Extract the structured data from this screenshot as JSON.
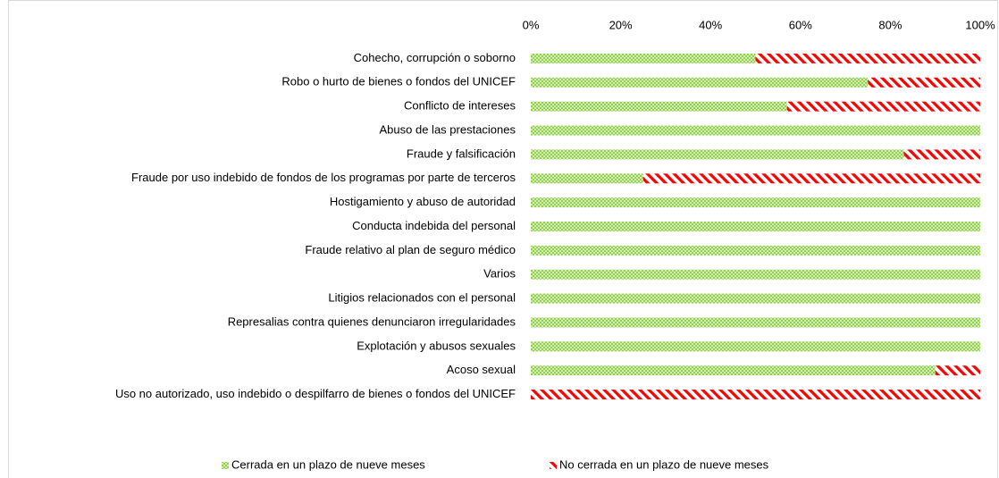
{
  "chart_data": {
    "type": "stacked_bar_horizontal",
    "categories": [
      "Cohecho, corrupción o soborno",
      "Robo o hurto de bienes o fondos del UNICEF",
      "Conflicto de intereses",
      "Abuso de las prestaciones",
      "Fraude y falsificación",
      "Fraude por uso indebido de fondos de los programas por parte de terceros",
      "Hostigamiento  y abuso de autoridad",
      "Conducta indebida del personal",
      "Fraude relativo al plan de seguro médico",
      "Varios",
      "Litigios relacionados con el personal",
      "Represalias contra quienes denunciaron irregularidades",
      "Explotación y abusos sexuales",
      "Acoso sexual",
      "Uso no autorizado, uso indebido o despilfarro de bienes o fondos del UNICEF"
    ],
    "series": [
      {
        "name": "Cerrada en un plazo de nueve meses",
        "color": "#92d050",
        "values": [
          50,
          75,
          57,
          100,
          83,
          25,
          100,
          100,
          100,
          100,
          100,
          100,
          100,
          90,
          0
        ]
      },
      {
        "name": "No cerrada en un plazo de nueve meses",
        "color": "#ff0000",
        "values": [
          50,
          25,
          43,
          0,
          17,
          75,
          0,
          0,
          0,
          0,
          0,
          0,
          0,
          10,
          100
        ]
      }
    ],
    "xlim": [
      0,
      100
    ],
    "xticks": [
      {
        "value": 0,
        "label": "0%"
      },
      {
        "value": 20,
        "label": "20%"
      },
      {
        "value": 40,
        "label": "40%"
      },
      {
        "value": 60,
        "label": "60%"
      },
      {
        "value": 80,
        "label": "80%"
      },
      {
        "value": 100,
        "label": "100%"
      }
    ],
    "legend": "bottom"
  }
}
